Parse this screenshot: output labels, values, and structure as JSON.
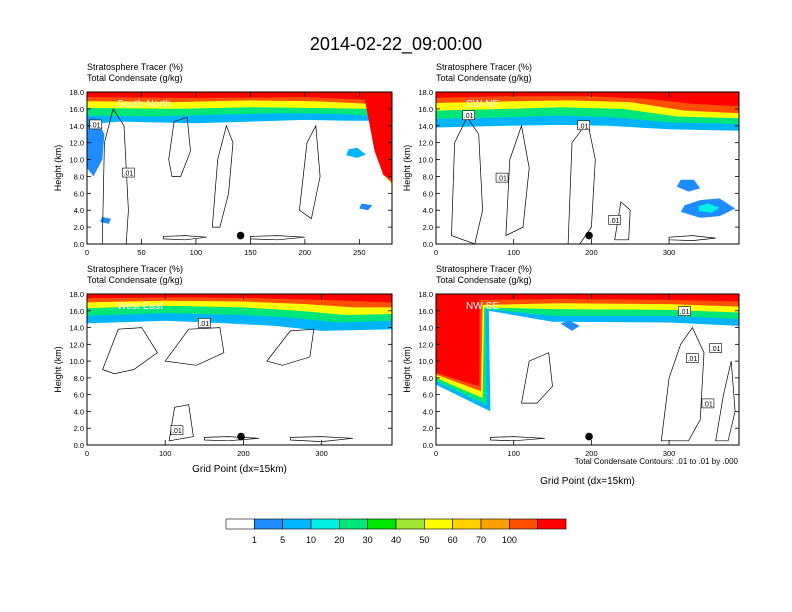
{
  "title": "2014-02-22_09:00:00",
  "footnote": "Total Condensate Contours: .01 to .01 by .000",
  "colorbar": {
    "labels": [
      "1",
      "5",
      "10",
      "20",
      "30",
      "40",
      "50",
      "60",
      "70",
      "100"
    ],
    "colors": [
      "#ffffff",
      "#1e8cff",
      "#00b4ff",
      "#00f0e6",
      "#00e678",
      "#00e600",
      "#a0e632",
      "#ffff00",
      "#ffd200",
      "#ffa000",
      "#ff5000",
      "#ff0000"
    ]
  },
  "chart_data": [
    {
      "type": "heatmap",
      "label": "South-North",
      "subtitle_1": "Stratosphere Tracer    (%)",
      "subtitle_2": "Total Condensate    (g/kg)",
      "ylabel": "Height (km)",
      "xlabel": "",
      "xlim": [
        0,
        280
      ],
      "ylim": [
        0,
        18
      ],
      "xticks": [
        "0",
        "50",
        "100",
        "150",
        "200",
        "250"
      ],
      "yticks": [
        "0.0",
        "2.0",
        "4.0",
        "6.0",
        "8.0",
        "10.0",
        "12.0",
        "14.0",
        "16.0",
        "18.0"
      ],
      "contour_labels": [
        ".01",
        ".01"
      ],
      "marker": {
        "x": 141,
        "y": 1.0
      }
    },
    {
      "type": "heatmap",
      "label": "SW-NE",
      "subtitle_1": "Stratosphere Tracer    (%)",
      "subtitle_2": "Total Condensate    (g/kg)",
      "ylabel": "Height (km)",
      "xlabel": "",
      "xlim": [
        0,
        390
      ],
      "ylim": [
        0,
        18
      ],
      "xticks": [
        "0",
        "100",
        "200",
        "300"
      ],
      "yticks": [
        "0.0",
        "2.0",
        "4.0",
        "6.0",
        "8.0",
        "10.0",
        "12.0",
        "14.0",
        "16.0",
        "18.0"
      ],
      "contour_labels": [
        ".01",
        ".01",
        ".01",
        ".01"
      ],
      "marker": {
        "x": 197,
        "y": 1.0
      }
    },
    {
      "type": "heatmap",
      "label": "West-East",
      "subtitle_1": "Stratosphere Tracer    (%)",
      "subtitle_2": "Total Condensate    (g/kg)",
      "ylabel": "Height (km)",
      "xlabel": "Grid Point (dx=15km)",
      "xlim": [
        0,
        390
      ],
      "ylim": [
        0,
        18
      ],
      "xticks": [
        "0",
        "100",
        "200",
        "300"
      ],
      "yticks": [
        "0.0",
        "2.0",
        "4.0",
        "6.0",
        "8.0",
        "10.0",
        "12.0",
        "14.0",
        "16.0",
        "18.0"
      ],
      "contour_labels": [
        ".01",
        ".01"
      ],
      "marker": {
        "x": 197,
        "y": 1.0
      }
    },
    {
      "type": "heatmap",
      "label": "NW-SE",
      "subtitle_1": "Stratosphere Tracer    (%)",
      "subtitle_2": "Total Condensate    (g/kg)",
      "ylabel": "Height (km)",
      "xlabel": "Grid Point (dx=15km)",
      "xlim": [
        0,
        390
      ],
      "ylim": [
        0,
        18
      ],
      "xticks": [
        "0",
        "100",
        "200",
        "300"
      ],
      "yticks": [
        "0.0",
        "2.0",
        "4.0",
        "6.0",
        "8.0",
        "10.0",
        "12.0",
        "14.0",
        "16.0",
        "18.0"
      ],
      "contour_labels": [
        ".01",
        ".01",
        ".01",
        ".01"
      ],
      "marker": {
        "x": 197,
        "y": 1.0
      }
    }
  ]
}
